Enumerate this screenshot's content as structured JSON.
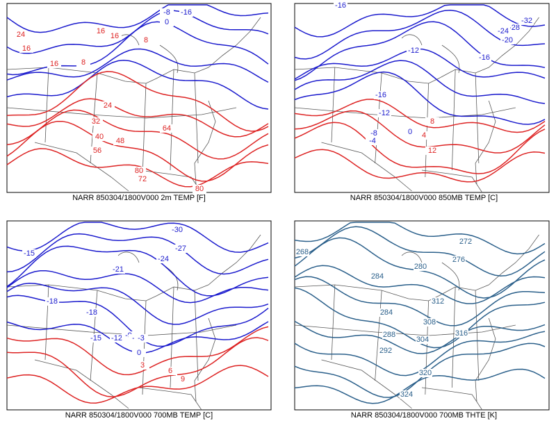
{
  "panels": [
    {
      "caption": "NARR 850304/1800V000 2m TEMP [F]",
      "labels": [
        "24",
        "-8",
        "-16",
        "16",
        "16",
        "0",
        "8",
        "16",
        "16",
        "8",
        "24",
        "32",
        "40",
        "48",
        "56",
        "64",
        "80",
        "72",
        "80"
      ]
    },
    {
      "caption": "NARR 850304/1800V000 850MB TEMP [C]",
      "labels": [
        "-16",
        "-32",
        "-28",
        "-24",
        "-20",
        "-12",
        "-16",
        "-16",
        "-12",
        "-8",
        "-4",
        "0",
        "8",
        "4",
        "12"
      ]
    },
    {
      "caption": "NARR 850304/1800V000 700MB TEMP [C]",
      "labels": [
        "-30",
        "-27",
        "-15",
        "-21",
        "-24",
        "-18",
        "-18",
        "-15",
        "-12",
        "-9",
        "-6",
        "-3",
        "0",
        "3",
        "6",
        "9"
      ]
    },
    {
      "caption": "NARR 850304/1800V000 700MB THTE [K]",
      "labels": [
        "268",
        "272",
        "276",
        "280",
        "284",
        "284",
        "312",
        "308",
        "304",
        "288",
        "292",
        "316",
        "320",
        "324"
      ]
    }
  ]
}
